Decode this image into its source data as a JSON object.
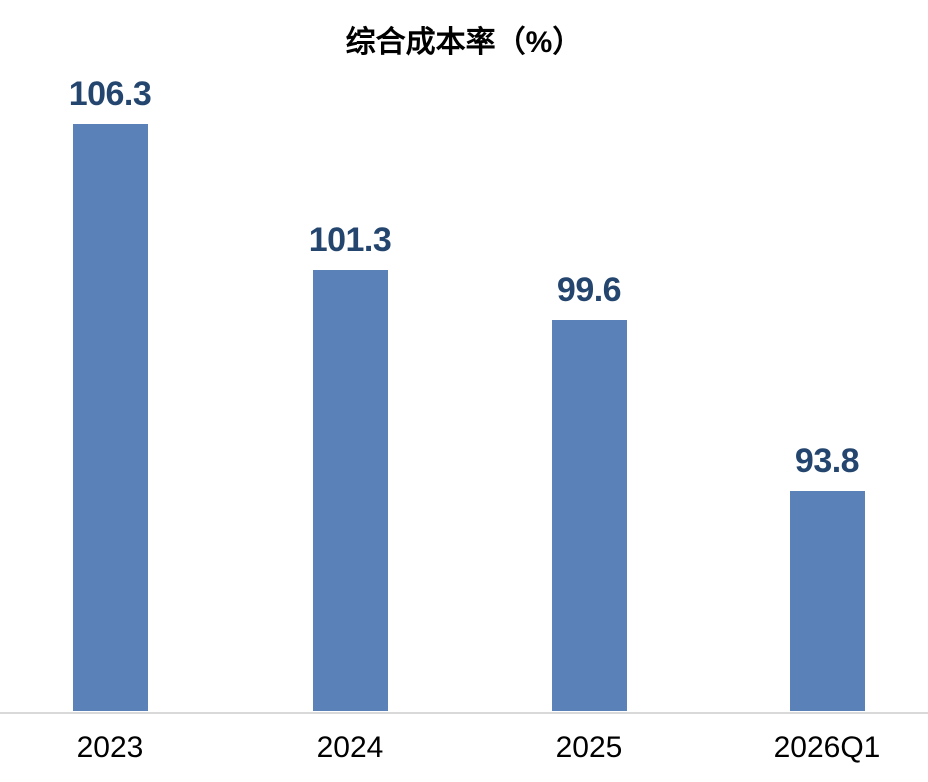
{
  "chart_data": {
    "type": "bar",
    "title": "综合成本率（%）",
    "categories": [
      "2023",
      "2024",
      "2025",
      "2026Q1"
    ],
    "values": [
      106.3,
      101.3,
      99.6,
      93.8
    ],
    "xlabel": "",
    "ylabel": "",
    "ylim": [
      86.3,
      108.5
    ],
    "grid": false,
    "legend": false,
    "y_axis_visible": false,
    "data_labels_visible": true,
    "colors": {
      "bar": "#5A81B8",
      "data_label": "#24466E",
      "title": "#000000",
      "axis_label": "#000000",
      "axis_line": "#D9D9D9",
      "background": "#FFFFFF"
    }
  }
}
